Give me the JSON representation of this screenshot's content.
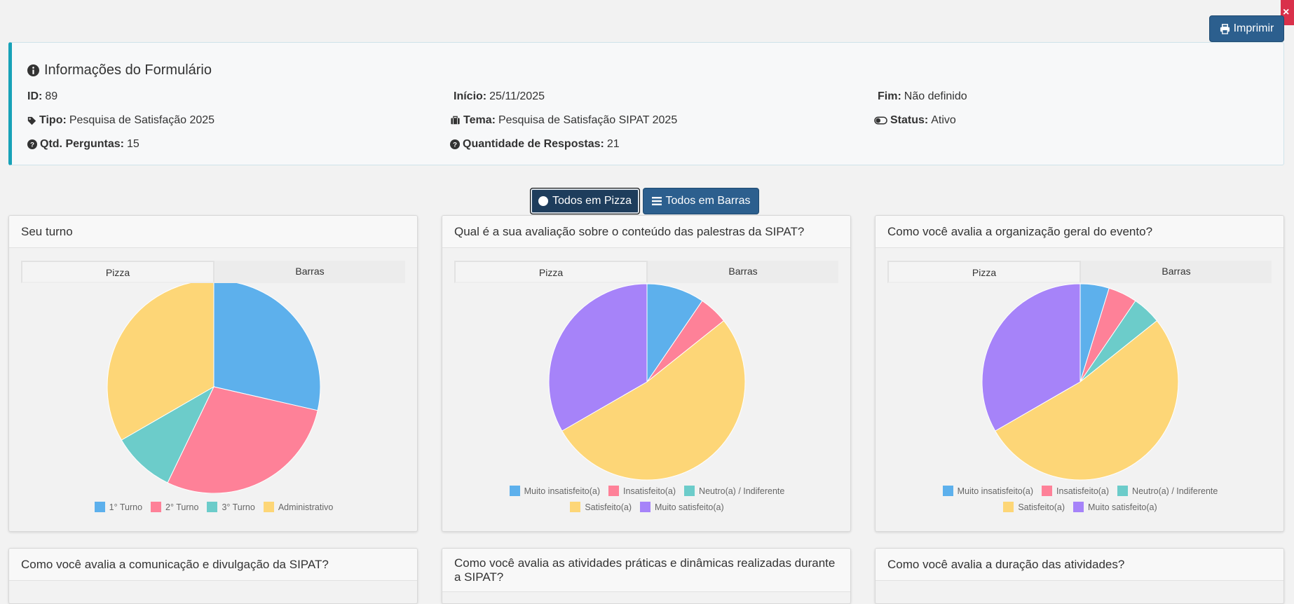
{
  "print_button": {
    "label": "Imprimir"
  },
  "info": {
    "title": "Informações do Formulário",
    "id_label": "ID:",
    "id_value": "89",
    "inicio_label": "Início:",
    "inicio_value": "25/11/2025",
    "fim_label": "Fim:",
    "fim_value": "Não definido",
    "tipo_label": "Tipo:",
    "tipo_value": "Pesquisa de Satisfação 2025",
    "tema_label": "Tema:",
    "tema_value": "Pesquisa de Satisfação SIPAT 2025",
    "status_label": "Status:",
    "status_value": "Ativo",
    "qtd_label": "Qtd. Perguntas:",
    "qtd_value": "15",
    "respostas_label": "Quantidade de Respostas:",
    "respostas_value": "21"
  },
  "toggles": {
    "pie_label": "Todos em Pizza",
    "bar_label": "Todos em Barras"
  },
  "tabs": {
    "pie": "Pizza",
    "bar": "Barras"
  },
  "colors": {
    "blue": "#5db0ec",
    "pink": "#fe8198",
    "teal": "#6cccca",
    "yellow": "#fdd677",
    "purple": "#a683f9",
    "accent": "#2c5f8e",
    "info_border": "#17a2b8"
  },
  "cards": [
    {
      "title": "Seu turno"
    },
    {
      "title": "Qual é a sua avaliação sobre o conteúdo das palestras da SIPAT?"
    },
    {
      "title": "Como você avalia a organização geral do evento?"
    },
    {
      "title": "Como você avalia a comunicação e divulgação da SIPAT?"
    },
    {
      "title": "Como você avalia as atividades práticas e dinâmicas realizadas durante a SIPAT?"
    },
    {
      "title": "Como você avalia a duração das atividades?"
    }
  ],
  "chart_data": [
    {
      "type": "pie",
      "categories": [
        "1° Turno",
        "2° Turno",
        "3° Turno",
        "Administrativo"
      ],
      "values": [
        6,
        6,
        2,
        7
      ],
      "colors": [
        "#5db0ec",
        "#fe8198",
        "#6cccca",
        "#fdd677"
      ],
      "legend_position": "bottom"
    },
    {
      "type": "pie",
      "categories": [
        "Muito insatisfeito(a)",
        "Insatisfeito(a)",
        "Neutro(a) / Indiferente",
        "Satisfeito(a)",
        "Muito satisfeito(a)"
      ],
      "values": [
        2,
        1,
        0,
        11,
        7
      ],
      "colors": [
        "#5db0ec",
        "#fe8198",
        "#6cccca",
        "#fdd677",
        "#a683f9"
      ],
      "legend_position": "bottom"
    },
    {
      "type": "pie",
      "categories": [
        "Muito insatisfeito(a)",
        "Insatisfeito(a)",
        "Neutro(a) / Indiferente",
        "Satisfeito(a)",
        "Muito satisfeito(a)"
      ],
      "values": [
        1,
        1,
        1,
        11,
        7
      ],
      "colors": [
        "#5db0ec",
        "#fe8198",
        "#6cccca",
        "#fdd677",
        "#a683f9"
      ],
      "legend_position": "bottom"
    }
  ]
}
